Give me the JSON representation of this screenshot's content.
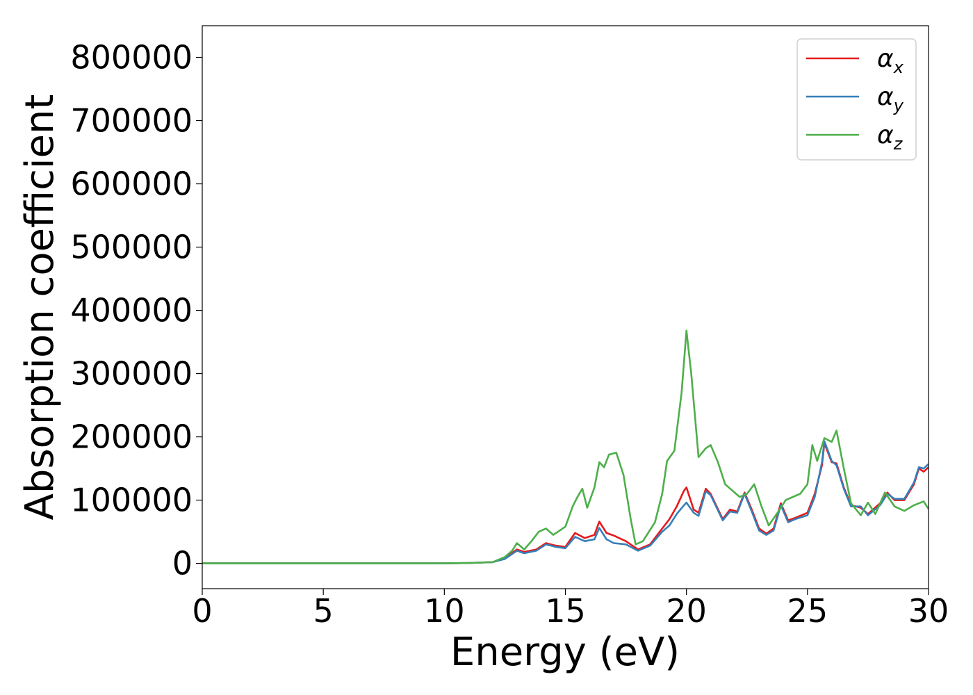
{
  "chart_data": {
    "type": "line",
    "xlabel": "Energy (eV)",
    "ylabel": "Absorption coefficient",
    "xlim": [
      0,
      30
    ],
    "ylim": [
      -40000,
      850000
    ],
    "xticks": [
      0,
      5,
      10,
      15,
      20,
      25,
      30
    ],
    "xtick_labels": [
      "0",
      "5",
      "10",
      "15",
      "20",
      "25",
      "30"
    ],
    "yticks": [
      0,
      100000,
      200000,
      300000,
      400000,
      500000,
      600000,
      700000,
      800000
    ],
    "ytick_labels": [
      "0",
      "100000",
      "200000",
      "300000",
      "400000",
      "500000",
      "600000",
      "700000",
      "800000"
    ],
    "grid": false,
    "legend_position": "top-right",
    "series": [
      {
        "name": "α_x",
        "label_main": "α",
        "label_sub": "x",
        "color": "#e41a1c",
        "points": [
          [
            0,
            0
          ],
          [
            5,
            0
          ],
          [
            10,
            0
          ],
          [
            11,
            500
          ],
          [
            12,
            2000
          ],
          [
            12.5,
            8000
          ],
          [
            13,
            22000
          ],
          [
            13.3,
            18000
          ],
          [
            13.8,
            22000
          ],
          [
            14.2,
            32000
          ],
          [
            14.6,
            28000
          ],
          [
            15,
            26000
          ],
          [
            15.4,
            48000
          ],
          [
            15.8,
            40000
          ],
          [
            16.2,
            45000
          ],
          [
            16.4,
            66000
          ],
          [
            16.7,
            48000
          ],
          [
            17,
            44000
          ],
          [
            17.5,
            35000
          ],
          [
            18,
            22000
          ],
          [
            18.5,
            30000
          ],
          [
            19,
            55000
          ],
          [
            19.3,
            70000
          ],
          [
            19.6,
            90000
          ],
          [
            19.9,
            115000
          ],
          [
            20,
            120000
          ],
          [
            20.3,
            85000
          ],
          [
            20.5,
            80000
          ],
          [
            20.8,
            118000
          ],
          [
            21,
            110000
          ],
          [
            21.5,
            70000
          ],
          [
            21.8,
            85000
          ],
          [
            22.1,
            82000
          ],
          [
            22.4,
            112000
          ],
          [
            22.7,
            85000
          ],
          [
            23,
            55000
          ],
          [
            23.3,
            47000
          ],
          [
            23.6,
            55000
          ],
          [
            23.9,
            95000
          ],
          [
            24.2,
            68000
          ],
          [
            24.5,
            72000
          ],
          [
            25,
            80000
          ],
          [
            25.3,
            110000
          ],
          [
            25.6,
            155000
          ],
          [
            25.7,
            190000
          ],
          [
            26,
            160000
          ],
          [
            26.2,
            158000
          ],
          [
            26.5,
            120000
          ],
          [
            26.8,
            92000
          ],
          [
            27.2,
            88000
          ],
          [
            27.5,
            78000
          ],
          [
            28,
            95000
          ],
          [
            28.3,
            112000
          ],
          [
            28.6,
            100000
          ],
          [
            29,
            100000
          ],
          [
            29.4,
            125000
          ],
          [
            29.6,
            150000
          ],
          [
            29.8,
            145000
          ],
          [
            30,
            152000
          ]
        ]
      },
      {
        "name": "α_y",
        "label_main": "α",
        "label_sub": "y",
        "color": "#377eb8",
        "points": [
          [
            0,
            0
          ],
          [
            5,
            0
          ],
          [
            10,
            0
          ],
          [
            11,
            500
          ],
          [
            12,
            2000
          ],
          [
            12.5,
            7000
          ],
          [
            13,
            20000
          ],
          [
            13.3,
            16000
          ],
          [
            13.8,
            20000
          ],
          [
            14.2,
            30000
          ],
          [
            14.6,
            26000
          ],
          [
            15,
            24000
          ],
          [
            15.4,
            42000
          ],
          [
            15.8,
            35000
          ],
          [
            16.2,
            38000
          ],
          [
            16.4,
            56000
          ],
          [
            16.7,
            38000
          ],
          [
            17,
            32000
          ],
          [
            17.5,
            30000
          ],
          [
            18,
            20000
          ],
          [
            18.5,
            28000
          ],
          [
            19,
            50000
          ],
          [
            19.3,
            60000
          ],
          [
            19.6,
            78000
          ],
          [
            19.9,
            92000
          ],
          [
            20,
            96000
          ],
          [
            20.3,
            80000
          ],
          [
            20.5,
            75000
          ],
          [
            20.8,
            114000
          ],
          [
            21,
            108000
          ],
          [
            21.5,
            68000
          ],
          [
            21.8,
            82000
          ],
          [
            22.1,
            80000
          ],
          [
            22.4,
            110000
          ],
          [
            22.7,
            82000
          ],
          [
            23,
            52000
          ],
          [
            23.3,
            45000
          ],
          [
            23.6,
            52000
          ],
          [
            23.9,
            92000
          ],
          [
            24.2,
            65000
          ],
          [
            24.5,
            70000
          ],
          [
            25,
            76000
          ],
          [
            25.3,
            105000
          ],
          [
            25.6,
            160000
          ],
          [
            25.7,
            193000
          ],
          [
            26,
            162000
          ],
          [
            26.2,
            155000
          ],
          [
            26.5,
            118000
          ],
          [
            26.8,
            90000
          ],
          [
            27.2,
            90000
          ],
          [
            27.5,
            76000
          ],
          [
            28,
            92000
          ],
          [
            28.3,
            110000
          ],
          [
            28.6,
            102000
          ],
          [
            29,
            102000
          ],
          [
            29.4,
            128000
          ],
          [
            29.6,
            152000
          ],
          [
            29.8,
            150000
          ],
          [
            30,
            157000
          ]
        ]
      },
      {
        "name": "α_z",
        "label_main": "α",
        "label_sub": "z",
        "color": "#4daf4a",
        "points": [
          [
            0,
            0
          ],
          [
            5,
            0
          ],
          [
            10,
            0
          ],
          [
            11,
            500
          ],
          [
            12,
            2000
          ],
          [
            12.5,
            10000
          ],
          [
            12.8,
            20000
          ],
          [
            13,
            32000
          ],
          [
            13.3,
            22000
          ],
          [
            13.6,
            35000
          ],
          [
            13.9,
            50000
          ],
          [
            14.2,
            55000
          ],
          [
            14.5,
            45000
          ],
          [
            15,
            58000
          ],
          [
            15.3,
            90000
          ],
          [
            15.5,
            105000
          ],
          [
            15.7,
            118000
          ],
          [
            15.9,
            88000
          ],
          [
            16.2,
            120000
          ],
          [
            16.4,
            160000
          ],
          [
            16.6,
            152000
          ],
          [
            16.8,
            172000
          ],
          [
            17.1,
            175000
          ],
          [
            17.4,
            140000
          ],
          [
            17.7,
            70000
          ],
          [
            17.9,
            30000
          ],
          [
            18.2,
            35000
          ],
          [
            18.7,
            65000
          ],
          [
            19,
            110000
          ],
          [
            19.2,
            162000
          ],
          [
            19.5,
            178000
          ],
          [
            19.8,
            270000
          ],
          [
            20,
            368000
          ],
          [
            20.2,
            300000
          ],
          [
            20.5,
            168000
          ],
          [
            20.8,
            182000
          ],
          [
            21,
            187000
          ],
          [
            21.3,
            160000
          ],
          [
            21.6,
            125000
          ],
          [
            21.9,
            115000
          ],
          [
            22.2,
            105000
          ],
          [
            22.5,
            110000
          ],
          [
            22.8,
            125000
          ],
          [
            23.1,
            90000
          ],
          [
            23.4,
            60000
          ],
          [
            23.8,
            82000
          ],
          [
            24.1,
            100000
          ],
          [
            24.4,
            105000
          ],
          [
            24.7,
            110000
          ],
          [
            25,
            125000
          ],
          [
            25.2,
            187000
          ],
          [
            25.4,
            162000
          ],
          [
            25.7,
            198000
          ],
          [
            26,
            192000
          ],
          [
            26.2,
            210000
          ],
          [
            26.5,
            150000
          ],
          [
            26.8,
            95000
          ],
          [
            27.2,
            76000
          ],
          [
            27.5,
            96000
          ],
          [
            27.8,
            78000
          ],
          [
            28.2,
            112000
          ],
          [
            28.6,
            90000
          ],
          [
            29,
            83000
          ],
          [
            29.4,
            92000
          ],
          [
            29.8,
            98000
          ],
          [
            30,
            86000
          ]
        ]
      }
    ]
  }
}
